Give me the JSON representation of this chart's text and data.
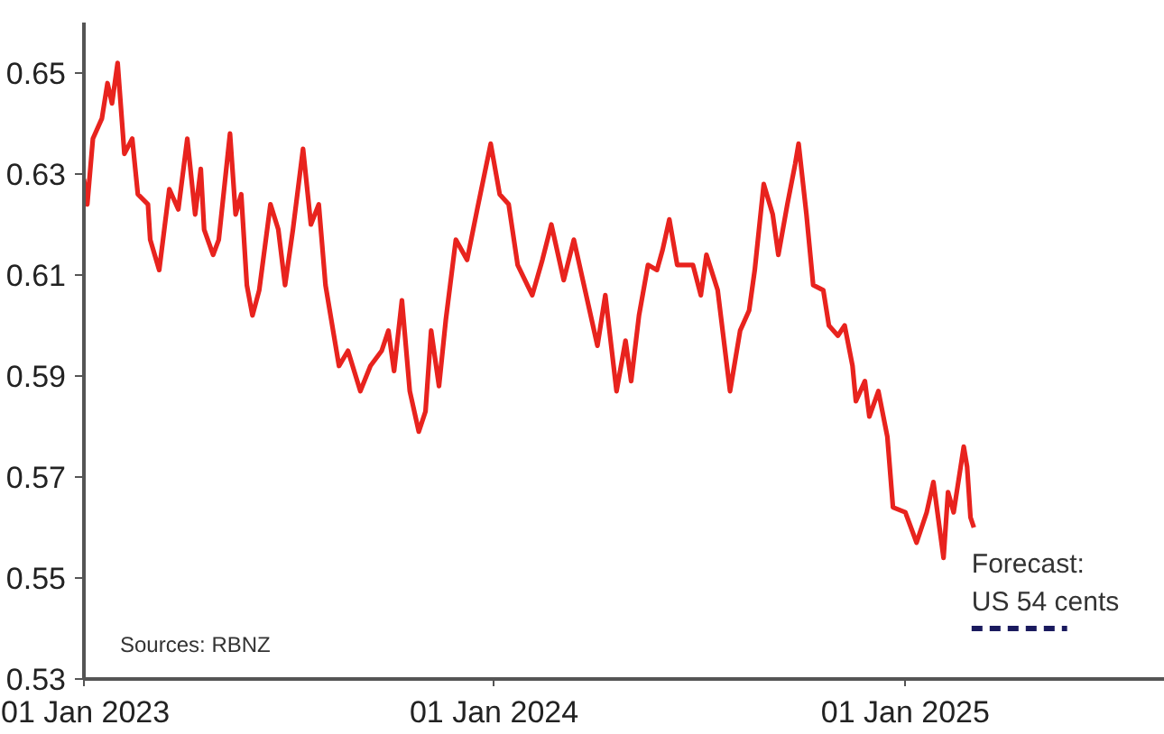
{
  "chart_data": {
    "type": "line",
    "xlim": [
      "2023-01-01",
      "2025-08-20"
    ],
    "xticks": [
      {
        "value": "2023-01-01",
        "label": "01 Jan 2023"
      },
      {
        "value": "2024-01-01",
        "label": "01 Jan 2024"
      },
      {
        "value": "2025-01-01",
        "label": "01 Jan 2025"
      }
    ],
    "ylim": [
      0.53,
      0.66
    ],
    "yticks": [
      0.53,
      0.55,
      0.57,
      0.59,
      0.61,
      0.63,
      0.65
    ],
    "grid": false,
    "series": [
      {
        "color": "#e8231e",
        "line_style": "solid",
        "x": [
          "2023-01-01",
          "2023-01-04",
          "2023-01-09",
          "2023-01-17",
          "2023-01-22",
          "2023-01-26",
          "2023-01-31",
          "2023-02-06",
          "2023-02-13",
          "2023-02-18",
          "2023-02-27",
          "2023-03-01",
          "2023-03-09",
          "2023-03-18",
          "2023-03-26",
          "2023-04-03",
          "2023-04-10",
          "2023-04-15",
          "2023-04-18",
          "2023-04-26",
          "2023-05-01",
          "2023-05-11",
          "2023-05-16",
          "2023-05-21",
          "2023-05-26",
          "2023-05-31",
          "2023-06-06",
          "2023-06-16",
          "2023-06-23",
          "2023-06-29",
          "2023-07-06",
          "2023-07-15",
          "2023-07-22",
          "2023-07-29",
          "2023-08-04",
          "2023-08-16",
          "2023-08-24",
          "2023-09-04",
          "2023-09-13",
          "2023-09-23",
          "2023-09-29",
          "2023-10-04",
          "2023-10-11",
          "2023-10-18",
          "2023-10-26",
          "2023-11-01",
          "2023-11-06",
          "2023-11-13",
          "2023-11-19",
          "2023-11-28",
          "2023-12-08",
          "2023-12-17",
          "2023-12-29",
          "2024-01-06",
          "2024-01-14",
          "2024-01-22",
          "2024-02-04",
          "2024-02-13",
          "2024-02-21",
          "2024-03-03",
          "2024-03-12",
          "2024-03-20",
          "2024-03-30",
          "2024-04-02",
          "2024-04-09",
          "2024-04-19",
          "2024-04-27",
          "2024-05-02",
          "2024-05-09",
          "2024-05-17",
          "2024-05-25",
          "2024-05-30",
          "2024-06-05",
          "2024-06-12",
          "2024-06-26",
          "2024-07-03",
          "2024-07-08",
          "2024-07-18",
          "2024-07-29",
          "2024-08-07",
          "2024-08-15",
          "2024-08-20",
          "2024-08-28",
          "2024-09-05",
          "2024-09-10",
          "2024-09-18",
          "2024-09-25",
          "2024-09-28",
          "2024-10-05",
          "2024-10-11",
          "2024-10-20",
          "2024-10-25",
          "2024-11-02",
          "2024-11-08",
          "2024-11-15",
          "2024-11-18",
          "2024-11-26",
          "2024-11-30",
          "2024-12-08",
          "2024-12-16",
          "2024-12-21",
          "2025-01-01",
          "2025-01-11",
          "2025-01-20",
          "2025-01-26",
          "2025-02-04",
          "2025-02-08",
          "2025-02-13",
          "2025-02-22",
          "2025-02-25",
          "2025-02-28",
          "2025-03-03"
        ],
        "values": [
          0.629,
          0.624,
          0.637,
          0.641,
          0.648,
          0.644,
          0.652,
          0.634,
          0.637,
          0.626,
          0.624,
          0.617,
          0.611,
          0.627,
          0.623,
          0.637,
          0.622,
          0.631,
          0.619,
          0.614,
          0.617,
          0.638,
          0.622,
          0.626,
          0.608,
          0.602,
          0.607,
          0.624,
          0.619,
          0.608,
          0.619,
          0.635,
          0.62,
          0.624,
          0.608,
          0.592,
          0.595,
          0.587,
          0.592,
          0.595,
          0.599,
          0.591,
          0.605,
          0.587,
          0.579,
          0.583,
          0.599,
          0.588,
          0.601,
          0.617,
          0.613,
          0.623,
          0.636,
          0.626,
          0.624,
          0.612,
          0.606,
          0.613,
          0.62,
          0.609,
          0.617,
          0.609,
          0.599,
          0.596,
          0.606,
          0.587,
          0.597,
          0.589,
          0.602,
          0.612,
          0.611,
          0.615,
          0.621,
          0.612,
          0.612,
          0.606,
          0.614,
          0.607,
          0.587,
          0.599,
          0.603,
          0.611,
          0.628,
          0.622,
          0.614,
          0.624,
          0.632,
          0.636,
          0.622,
          0.608,
          0.607,
          0.6,
          0.598,
          0.6,
          0.592,
          0.585,
          0.589,
          0.582,
          0.587,
          0.578,
          0.564,
          0.563,
          0.557,
          0.563,
          0.569,
          0.554,
          0.567,
          0.563,
          0.576,
          0.572,
          0.562,
          0.56
        ]
      },
      {
        "name": "Forecast:\nUS 54 cents",
        "color": "#1a1a5e",
        "line_style": "dashed",
        "x": [
          "2025-03-01",
          "2025-05-25"
        ],
        "values": [
          0.54,
          0.54
        ]
      }
    ],
    "annotations": [
      "Sources: RBNZ"
    ]
  }
}
